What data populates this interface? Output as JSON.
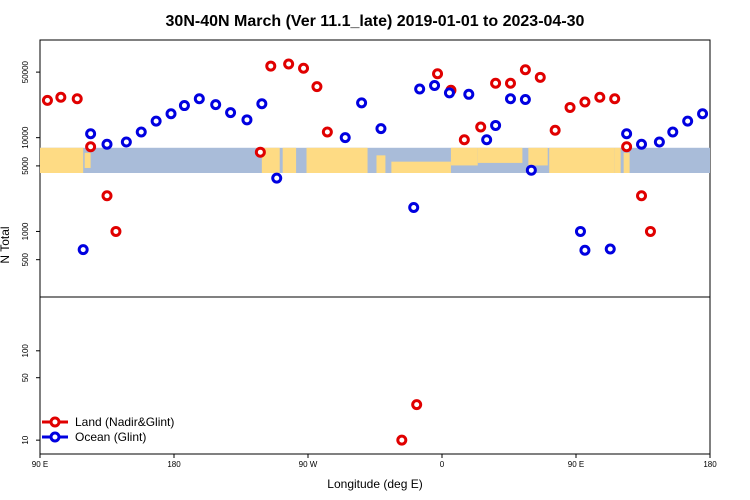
{
  "chart_data": {
    "type": "scatter",
    "title": "30N-40N March (Ver 11.1_late)   2019-01-01 to 2023-04-30",
    "xlabel": "Longitude (deg E)",
    "ylabel": "N Total",
    "x_ticks": [
      {
        "value": 90,
        "label": "90 E"
      },
      {
        "value": 180,
        "label": "180"
      },
      {
        "value": 270,
        "label": "90 W"
      },
      {
        "value": 360,
        "label": "0"
      },
      {
        "value": 450,
        "label": "90 E"
      },
      {
        "value": 540,
        "label": "180"
      }
    ],
    "xlim": [
      90,
      540
    ],
    "upper_panel": {
      "scale": "log",
      "ylim": [
        200,
        110000
      ],
      "y_ticks": [
        {
          "value": 500,
          "label": "500"
        },
        {
          "value": 1000,
          "label": "1000"
        },
        {
          "value": 5000,
          "label": "5000"
        },
        {
          "value": 10000,
          "label": "10000"
        },
        {
          "value": 50000,
          "label": "50000"
        }
      ],
      "land_band": {
        "ymin": 4200,
        "ymax": 7800
      }
    },
    "lower_panel": {
      "scale": "log",
      "ylim": [
        7,
        400
      ],
      "y_ticks": [
        {
          "value": 10,
          "label": "10"
        },
        {
          "value": 50,
          "label": "50"
        },
        {
          "value": 100,
          "label": "100"
        }
      ]
    },
    "series": [
      {
        "name": "Land (Nadir&Glint)",
        "color": "#e00000",
        "upper": [
          {
            "x": 95,
            "y": 25000
          },
          {
            "x": 104,
            "y": 27000
          },
          {
            "x": 115,
            "y": 26000
          },
          {
            "x": 124,
            "y": 8000
          },
          {
            "x": 135,
            "y": 2400
          },
          {
            "x": 141,
            "y": 1000
          },
          {
            "x": 238,
            "y": 7000
          },
          {
            "x": 245,
            "y": 58000
          },
          {
            "x": 257,
            "y": 61000
          },
          {
            "x": 267,
            "y": 55000
          },
          {
            "x": 276,
            "y": 35000
          },
          {
            "x": 283,
            "y": 11500
          },
          {
            "x": 357,
            "y": 48000
          },
          {
            "x": 366,
            "y": 32000
          },
          {
            "x": 375,
            "y": 9500
          },
          {
            "x": 386,
            "y": 13000
          },
          {
            "x": 396,
            "y": 38000
          },
          {
            "x": 406,
            "y": 38000
          },
          {
            "x": 416,
            "y": 53000
          },
          {
            "x": 426,
            "y": 44000
          },
          {
            "x": 436,
            "y": 12000
          },
          {
            "x": 446,
            "y": 21000
          },
          {
            "x": 456,
            "y": 24000
          },
          {
            "x": 466,
            "y": 27000
          },
          {
            "x": 476,
            "y": 26000
          },
          {
            "x": 484,
            "y": 8000
          },
          {
            "x": 494,
            "y": 2400
          },
          {
            "x": 500,
            "y": 1000
          }
        ],
        "lower": [
          {
            "x": 333,
            "y": 10
          },
          {
            "x": 343,
            "y": 25
          }
        ]
      },
      {
        "name": "Ocean (Glint)",
        "color": "#0000e0",
        "upper": [
          {
            "x": 119,
            "y": 640
          },
          {
            "x": 124,
            "y": 11000
          },
          {
            "x": 135,
            "y": 8500
          },
          {
            "x": 148,
            "y": 9000
          },
          {
            "x": 158,
            "y": 11500
          },
          {
            "x": 168,
            "y": 15000
          },
          {
            "x": 178,
            "y": 18000
          },
          {
            "x": 187,
            "y": 22000
          },
          {
            "x": 197,
            "y": 26000
          },
          {
            "x": 208,
            "y": 22500
          },
          {
            "x": 218,
            "y": 18500
          },
          {
            "x": 229,
            "y": 15500
          },
          {
            "x": 239,
            "y": 23000
          },
          {
            "x": 249,
            "y": 3700
          },
          {
            "x": 295,
            "y": 10000
          },
          {
            "x": 306,
            "y": 23500
          },
          {
            "x": 319,
            "y": 12500
          },
          {
            "x": 341,
            "y": 1800
          },
          {
            "x": 345,
            "y": 33000
          },
          {
            "x": 355,
            "y": 36000
          },
          {
            "x": 365,
            "y": 30000
          },
          {
            "x": 378,
            "y": 29000
          },
          {
            "x": 390,
            "y": 9500
          },
          {
            "x": 396,
            "y": 13500
          },
          {
            "x": 406,
            "y": 26000
          },
          {
            "x": 416,
            "y": 25500
          },
          {
            "x": 420,
            "y": 4500
          },
          {
            "x": 453,
            "y": 1000
          },
          {
            "x": 456,
            "y": 630
          },
          {
            "x": 473,
            "y": 650
          },
          {
            "x": 484,
            "y": 11000
          },
          {
            "x": 494,
            "y": 8500
          },
          {
            "x": 506,
            "y": 9000
          },
          {
            "x": 515,
            "y": 11500
          },
          {
            "x": 525,
            "y": 15000
          },
          {
            "x": 535,
            "y": 18000
          }
        ],
        "lower": []
      }
    ],
    "legend": {
      "position": "bottom-left"
    }
  }
}
